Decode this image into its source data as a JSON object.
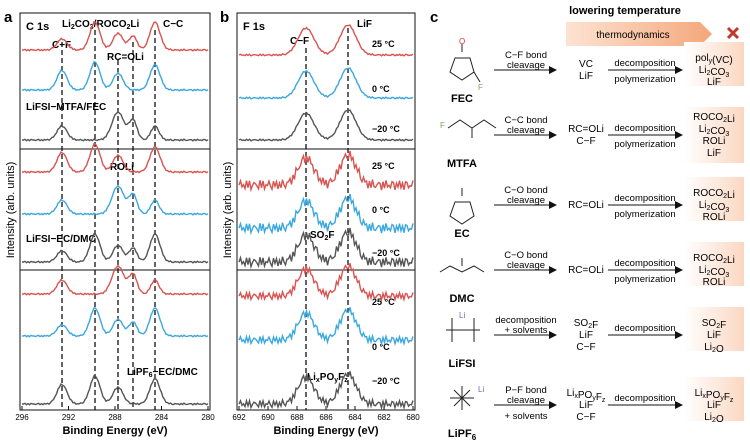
{
  "colors": {
    "red": "#d9534f",
    "blue": "#3aa8de",
    "gray": "#555555",
    "arrow": "#f4b08a",
    "x": "#c0392b"
  },
  "panel_a": {
    "letter": "a",
    "label": "C 1s",
    "ylabel": "Intensity (arb. units)",
    "xlabel": "Binding Energy (eV)",
    "xticks": [
      "296",
      "292",
      "288",
      "284",
      "280"
    ],
    "annotations": [
      "C−F",
      "Li2CO3/ROCO2Li",
      "C−C",
      "RC=OLi",
      "ROLi"
    ],
    "group_labels": [
      "LiFSI−MTFA/FEC",
      "LiFSI−EC/DMC",
      "LiPF6−EC/DMC"
    ]
  },
  "panel_b": {
    "letter": "b",
    "label": "F 1s",
    "ylabel": "Intensity (arb. units)",
    "xlabel": "Binding Energy (eV)",
    "xticks": [
      "692",
      "690",
      "688",
      "686",
      "684",
      "682",
      "680"
    ],
    "annotations": [
      "C−F",
      "LiF",
      "SO2F",
      "LixPOyFz"
    ],
    "temps": [
      "25 °C",
      "0 °C",
      "−20 °C"
    ]
  },
  "panel_c": {
    "letter": "c",
    "header": "lowering temperature",
    "arrow_label": "thermodynamics",
    "rows": [
      {
        "name": "FEC",
        "step1_top": "C−F bond",
        "step1_bot": "cleavage",
        "mid": [
          "VC",
          "LiF"
        ],
        "step2_top": "decomposition",
        "step2_bot": "polymerization",
        "products": [
          "poly(VC)",
          "Li2CO3",
          "LiF"
        ]
      },
      {
        "name": "MTFA",
        "step1_top": "C−C bond",
        "step1_bot": "cleavage",
        "mid": [
          "RC=OLi",
          "C−F"
        ],
        "step2_top": "decomposition",
        "step2_bot": "polymerization",
        "products": [
          "ROCO2Li",
          "Li2CO3",
          "ROLi",
          "LiF"
        ]
      },
      {
        "name": "EC",
        "step1_top": "C−O bond",
        "step1_bot": "cleavage",
        "mid": [
          "RC=OLi"
        ],
        "step2_top": "decomposition",
        "step2_bot": "polymerization",
        "products": [
          "ROCO2Li",
          "Li2CO3",
          "ROLi"
        ]
      },
      {
        "name": "DMC",
        "step1_top": "C−O bond",
        "step1_bot": "cleavage",
        "mid": [
          "RC=OLi"
        ],
        "step2_top": "decomposition",
        "step2_bot": "polymerization",
        "products": [
          "ROCO2Li",
          "Li2CO3",
          "ROLi"
        ]
      },
      {
        "name": "LiFSI",
        "step1_top": "decomposition",
        "step1_bot": "+ solvents",
        "mid": [
          "SO2F",
          "LiF",
          "C−F"
        ],
        "step2_top": "decomposition",
        "step2_bot": "",
        "products": [
          "SO2F",
          "LiF",
          "Li2O"
        ]
      },
      {
        "name": "LiPF6",
        "step1_top": "P−F bond",
        "step1_bot": "cleavage",
        "step1_extra": "+ solvents",
        "mid": [
          "LixPOyFz",
          "LiF",
          "C−F"
        ],
        "step2_top": "decomposition",
        "step2_bot": "",
        "products": [
          "LixPOyFz",
          "LiF",
          "Li2O"
        ]
      }
    ]
  }
}
